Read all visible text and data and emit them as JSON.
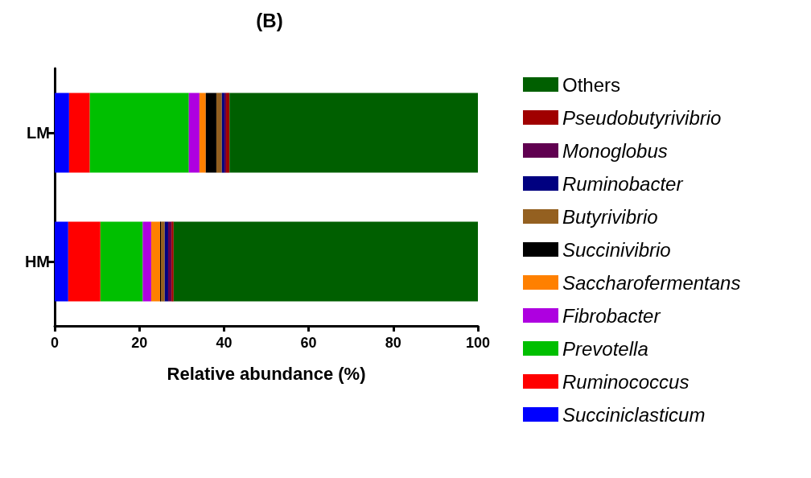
{
  "chart_data": {
    "type": "bar",
    "title": "(B)",
    "xlabel": "Relative abundance (%)",
    "orientation": "horizontal",
    "stacked": true,
    "categories": [
      "LM",
      "HM"
    ],
    "xlim": [
      0,
      100
    ],
    "xticks": [
      0,
      20,
      40,
      60,
      80,
      100
    ],
    "grid": false,
    "legend": "right",
    "series": [
      {
        "name": "Succiniclasticum",
        "color": "#0000ff",
        "values": [
          3.4,
          3.2
        ]
      },
      {
        "name": "Ruminococcus",
        "color": "#ff0000",
        "values": [
          4.9,
          7.6
        ]
      },
      {
        "name": "Prevotella",
        "color": "#00bf00",
        "values": [
          23.4,
          10.0
        ]
      },
      {
        "name": "Fibrobacter",
        "color": "#ae00e0",
        "values": [
          2.5,
          2.0
        ]
      },
      {
        "name": "Saccharofermentans",
        "color": "#ff8000",
        "values": [
          1.5,
          2.1
        ]
      },
      {
        "name": "Succinivibrio",
        "color": "#000000",
        "values": [
          2.5,
          0.2
        ]
      },
      {
        "name": "Butyrivibrio",
        "color": "#946020",
        "values": [
          1.3,
          0.9
        ]
      },
      {
        "name": "Ruminobacter",
        "color": "#000080",
        "values": [
          0.6,
          0.8
        ]
      },
      {
        "name": "Monoglobus",
        "color": "#600050",
        "values": [
          0.4,
          0.8
        ]
      },
      {
        "name": "Pseudobutyrivibrio",
        "color": "#a00000",
        "values": [
          0.8,
          0.5
        ]
      },
      {
        "name": "Others",
        "color": "#005f00",
        "values": [
          58.7,
          71.9
        ]
      }
    ]
  }
}
